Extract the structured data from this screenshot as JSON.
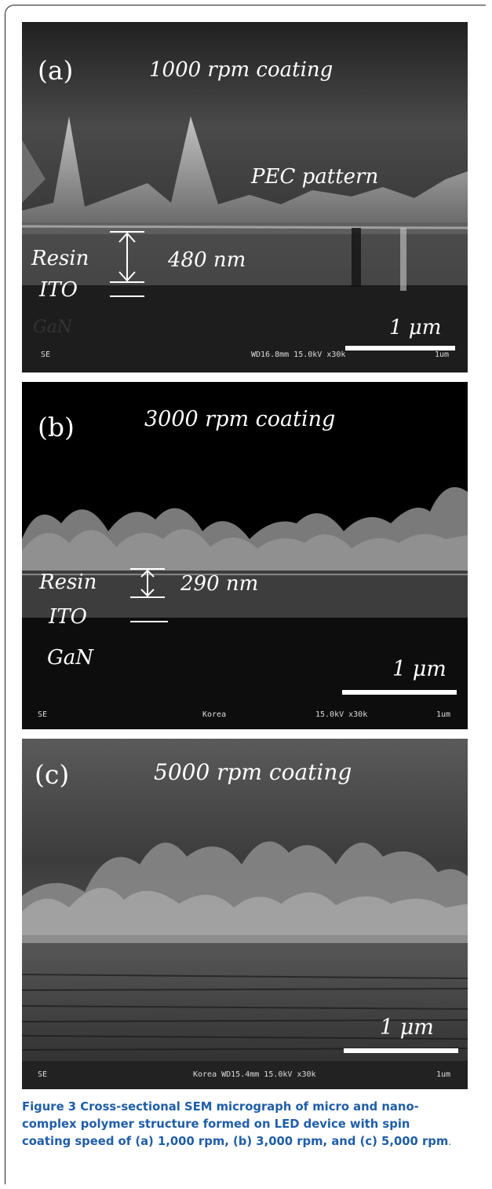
{
  "panels": [
    {
      "label": "(a)",
      "title": "1000 rpm coating",
      "annotations": {
        "pattern": "PEC pattern",
        "resin": "Resin",
        "thickness": "480 nm",
        "ito": "ITO",
        "gan": "GaN"
      },
      "scale_bar": "1 μm",
      "sem_info": {
        "left": "SE",
        "mid": "",
        "right": "WD16.8mm 15.0kV x30k",
        "unit": "1um"
      }
    },
    {
      "label": "(b)",
      "title": "3000 rpm coating",
      "annotations": {
        "resin": "Resin",
        "thickness": "290 nm",
        "ito": "ITO",
        "gan": "GaN"
      },
      "scale_bar": "1 μm",
      "sem_info": {
        "left": "SE",
        "mid": "Korea",
        "right": "15.0kV x30k",
        "unit": "1um"
      }
    },
    {
      "label": "(c)",
      "title": "5000 rpm coating",
      "scale_bar": "1 μm",
      "sem_info": {
        "left": "SE",
        "mid": "Korea  WD15.4mm 15.0kV x30k",
        "unit": "1um"
      }
    }
  ],
  "caption": {
    "label": "Figure 3",
    "text": " Cross-sectional SEM micrograph of micro and nano-complex polymer structure formed on LED device with spin coating speed of (a) 1,000 rpm, (b) 3,000 rpm, and (c) 5,000 rpm",
    "end": "."
  }
}
